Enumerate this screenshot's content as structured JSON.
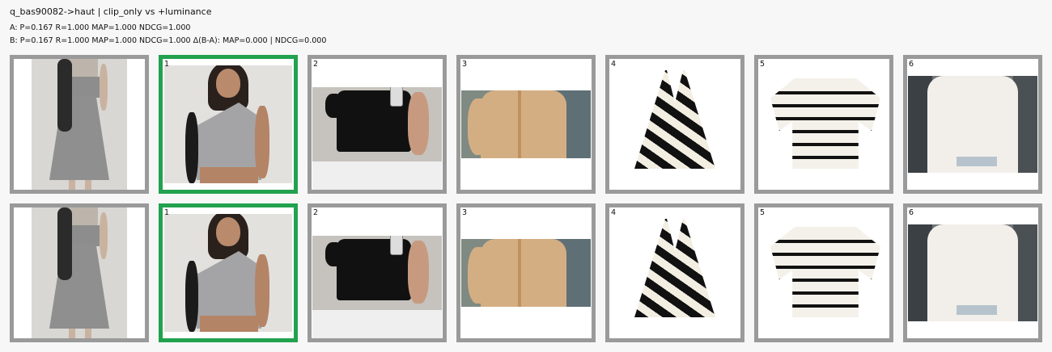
{
  "header": {
    "title": "q_bas90082->haut | clip_only vs +luminance",
    "metric_a": "A: P=0.167  R=1.000  MAP=1.000  NDCG=1.000",
    "metric_b": "B: P=0.167  R=1.000  MAP=1.000  NDCG=1.000   Δ(B-A): MAP=0.000 | NDCG=0.000"
  },
  "colors": {
    "match_border": "#22a24f",
    "default_border": "#9a9a9a"
  },
  "rows": [
    {
      "query": {
        "label": ""
      },
      "results": [
        {
          "rank": "1",
          "relevant": true
        },
        {
          "rank": "2",
          "relevant": false
        },
        {
          "rank": "3",
          "relevant": false
        },
        {
          "rank": "4",
          "relevant": false
        },
        {
          "rank": "5",
          "relevant": false
        },
        {
          "rank": "6",
          "relevant": false
        }
      ]
    },
    {
      "query": {
        "label": ""
      },
      "results": [
        {
          "rank": "1",
          "relevant": true
        },
        {
          "rank": "2",
          "relevant": false
        },
        {
          "rank": "3",
          "relevant": false
        },
        {
          "rank": "4",
          "relevant": false
        },
        {
          "rank": "5",
          "relevant": false
        },
        {
          "rank": "6",
          "relevant": false
        }
      ]
    }
  ]
}
